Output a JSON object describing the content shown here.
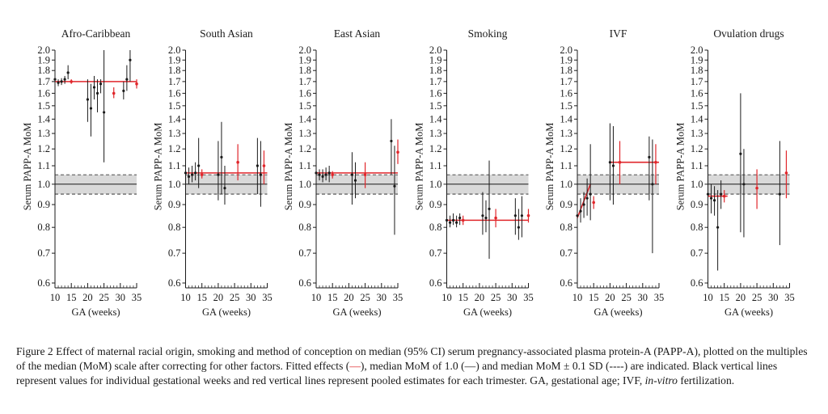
{
  "chart_data": [
    {
      "type": "scatter",
      "title": "Afro-Caribbean",
      "xlabel": "GA (weeks)",
      "ylabel": "Serum PAPP-A MoM",
      "xlim": [
        10,
        35
      ],
      "ylim": [
        0.6,
        2.0
      ],
      "y_scale": "log",
      "xticks": [
        10,
        15,
        20,
        25,
        30,
        35
      ],
      "yticks": [
        0.6,
        0.7,
        0.8,
        0.9,
        1.0,
        1.1,
        1.2,
        1.3,
        1.4,
        1.5,
        1.6,
        1.7,
        1.8,
        1.9,
        2.0
      ],
      "reference": {
        "median": 1.0,
        "band": [
          0.95,
          1.05
        ]
      },
      "fitted": [
        {
          "x0": 10,
          "x1": 35,
          "y": 1.7
        }
      ],
      "weekly_estimates": [
        {
          "x": 10,
          "y": 1.72,
          "lo": 1.69,
          "hi": 1.75
        },
        {
          "x": 11,
          "y": 1.69,
          "lo": 1.66,
          "hi": 1.72
        },
        {
          "x": 12,
          "y": 1.7,
          "lo": 1.67,
          "hi": 1.73
        },
        {
          "x": 13,
          "y": 1.72,
          "lo": 1.68,
          "hi": 1.75
        },
        {
          "x": 14,
          "y": 1.78,
          "lo": 1.72,
          "hi": 1.85
        },
        {
          "x": 20,
          "y": 1.55,
          "lo": 1.38,
          "hi": 1.72
        },
        {
          "x": 21,
          "y": 1.48,
          "lo": 1.28,
          "hi": 1.68
        },
        {
          "x": 22,
          "y": 1.65,
          "lo": 1.55,
          "hi": 1.75
        },
        {
          "x": 23,
          "y": 1.6,
          "lo": 1.45,
          "hi": 1.72
        },
        {
          "x": 24,
          "y": 1.68,
          "lo": 1.6,
          "hi": 1.72
        },
        {
          "x": 25,
          "y": 1.45,
          "lo": 1.12,
          "hi": 2.0
        },
        {
          "x": 31,
          "y": 1.62,
          "lo": 1.55,
          "hi": 1.7
        },
        {
          "x": 32,
          "y": 1.72,
          "lo": 1.62,
          "hi": 1.85
        },
        {
          "x": 33,
          "y": 1.9,
          "lo": 1.7,
          "hi": 2.0
        }
      ],
      "trimester_estimates": [
        {
          "x": 15,
          "y": 1.7,
          "lo": 1.68,
          "hi": 1.72
        },
        {
          "x": 28,
          "y": 1.6,
          "lo": 1.56,
          "hi": 1.65
        },
        {
          "x": 35,
          "y": 1.68,
          "lo": 1.64,
          "hi": 1.72
        }
      ]
    },
    {
      "type": "scatter",
      "title": "South Asian",
      "xlabel": "GA (weeks)",
      "ylabel": "Serum PAPP-A MoM",
      "xlim": [
        10,
        35
      ],
      "ylim": [
        0.6,
        2.0
      ],
      "y_scale": "log",
      "xticks": [
        10,
        15,
        20,
        25,
        30,
        35
      ],
      "yticks": [
        0.6,
        0.7,
        0.8,
        0.9,
        1.0,
        1.1,
        1.2,
        1.3,
        1.4,
        1.5,
        1.6,
        1.7,
        1.8,
        1.9,
        2.0
      ],
      "reference": {
        "median": 1.0,
        "band": [
          0.95,
          1.05
        ]
      },
      "fitted": [
        {
          "x0": 10,
          "x1": 35,
          "y": 1.06
        }
      ],
      "weekly_estimates": [
        {
          "x": 10,
          "y": 1.06,
          "lo": 1.02,
          "hi": 1.11
        },
        {
          "x": 11,
          "y": 1.04,
          "lo": 1.0,
          "hi": 1.09
        },
        {
          "x": 12,
          "y": 1.05,
          "lo": 1.01,
          "hi": 1.1
        },
        {
          "x": 13,
          "y": 1.06,
          "lo": 1.02,
          "hi": 1.12
        },
        {
          "x": 14,
          "y": 1.1,
          "lo": 0.98,
          "hi": 1.27
        },
        {
          "x": 20,
          "y": 1.05,
          "lo": 0.92,
          "hi": 1.25
        },
        {
          "x": 21,
          "y": 1.15,
          "lo": 0.95,
          "hi": 1.38
        },
        {
          "x": 22,
          "y": 0.98,
          "lo": 0.9,
          "hi": 1.1
        },
        {
          "x": 32,
          "y": 1.1,
          "lo": 0.95,
          "hi": 1.27
        },
        {
          "x": 33,
          "y": 1.05,
          "lo": 0.89,
          "hi": 1.25
        }
      ],
      "trimester_estimates": [
        {
          "x": 15,
          "y": 1.05,
          "lo": 1.03,
          "hi": 1.08
        },
        {
          "x": 26,
          "y": 1.12,
          "lo": 1.02,
          "hi": 1.23
        },
        {
          "x": 34,
          "y": 1.1,
          "lo": 1.0,
          "hi": 1.19
        }
      ]
    },
    {
      "type": "scatter",
      "title": "East Asian",
      "xlabel": "GA (weeks)",
      "ylabel": "Serum PAPP-A MoM",
      "xlim": [
        10,
        35
      ],
      "ylim": [
        0.6,
        2.0
      ],
      "y_scale": "log",
      "xticks": [
        10,
        15,
        20,
        25,
        30,
        35
      ],
      "yticks": [
        0.6,
        0.7,
        0.8,
        0.9,
        1.0,
        1.1,
        1.2,
        1.3,
        1.4,
        1.5,
        1.6,
        1.7,
        1.8,
        1.9,
        2.0
      ],
      "reference": {
        "median": 1.0,
        "band": [
          0.95,
          1.05
        ]
      },
      "fitted": [
        {
          "x0": 10,
          "x1": 35,
          "y": 1.06
        }
      ],
      "weekly_estimates": [
        {
          "x": 10,
          "y": 1.06,
          "lo": 1.03,
          "hi": 1.09
        },
        {
          "x": 11,
          "y": 1.05,
          "lo": 1.02,
          "hi": 1.08
        },
        {
          "x": 12,
          "y": 1.04,
          "lo": 1.01,
          "hi": 1.08
        },
        {
          "x": 13,
          "y": 1.05,
          "lo": 1.02,
          "hi": 1.09
        },
        {
          "x": 14,
          "y": 1.06,
          "lo": 1.01,
          "hi": 1.1
        },
        {
          "x": 21,
          "y": 1.05,
          "lo": 0.9,
          "hi": 1.18
        },
        {
          "x": 22,
          "y": 1.02,
          "lo": 0.93,
          "hi": 1.12
        },
        {
          "x": 33,
          "y": 1.25,
          "lo": 1.05,
          "hi": 1.4
        },
        {
          "x": 34,
          "y": 0.99,
          "lo": 0.77,
          "hi": 1.22
        }
      ],
      "trimester_estimates": [
        {
          "x": 15,
          "y": 1.05,
          "lo": 1.03,
          "hi": 1.07
        },
        {
          "x": 25,
          "y": 1.05,
          "lo": 0.98,
          "hi": 1.12
        },
        {
          "x": 35,
          "y": 1.18,
          "lo": 1.11,
          "hi": 1.26
        }
      ]
    },
    {
      "type": "scatter",
      "title": "Smoking",
      "xlabel": "GA (weeks)",
      "ylabel": "Serum PAPP-A MoM",
      "xlim": [
        10,
        35
      ],
      "ylim": [
        0.6,
        2.0
      ],
      "y_scale": "log",
      "xticks": [
        10,
        15,
        20,
        25,
        30,
        35
      ],
      "yticks": [
        0.6,
        0.7,
        0.8,
        0.9,
        1.0,
        1.1,
        1.2,
        1.3,
        1.4,
        1.5,
        1.6,
        1.7,
        1.8,
        1.9,
        2.0
      ],
      "reference": {
        "median": 1.0,
        "band": [
          0.95,
          1.05
        ]
      },
      "fitted": [
        {
          "x0": 10,
          "x1": 35,
          "y": 0.83
        }
      ],
      "weekly_estimates": [
        {
          "x": 10,
          "y": 0.83,
          "lo": 0.8,
          "hi": 0.86
        },
        {
          "x": 11,
          "y": 0.82,
          "lo": 0.8,
          "hi": 0.85
        },
        {
          "x": 12,
          "y": 0.83,
          "lo": 0.81,
          "hi": 0.86
        },
        {
          "x": 13,
          "y": 0.82,
          "lo": 0.8,
          "hi": 0.85
        },
        {
          "x": 14,
          "y": 0.84,
          "lo": 0.81,
          "hi": 0.86
        },
        {
          "x": 21,
          "y": 0.85,
          "lo": 0.77,
          "hi": 0.96
        },
        {
          "x": 22,
          "y": 0.84,
          "lo": 0.78,
          "hi": 0.92
        },
        {
          "x": 23,
          "y": 0.88,
          "lo": 0.68,
          "hi": 1.13
        },
        {
          "x": 31,
          "y": 0.85,
          "lo": 0.77,
          "hi": 0.93
        },
        {
          "x": 32,
          "y": 0.8,
          "lo": 0.75,
          "hi": 0.88
        },
        {
          "x": 33,
          "y": 0.85,
          "lo": 0.76,
          "hi": 0.94
        }
      ],
      "trimester_estimates": [
        {
          "x": 15,
          "y": 0.83,
          "lo": 0.81,
          "hi": 0.85
        },
        {
          "x": 25,
          "y": 0.84,
          "lo": 0.8,
          "hi": 0.88
        },
        {
          "x": 35,
          "y": 0.85,
          "lo": 0.82,
          "hi": 0.88
        }
      ]
    },
    {
      "type": "scatter",
      "title": "IVF",
      "xlabel": "GA (weeks)",
      "ylabel": "Serum PAPP-A MoM",
      "xlim": [
        10,
        35
      ],
      "ylim": [
        0.6,
        2.0
      ],
      "y_scale": "log",
      "xticks": [
        10,
        15,
        20,
        25,
        30,
        35
      ],
      "yticks": [
        0.6,
        0.7,
        0.8,
        0.9,
        1.0,
        1.1,
        1.2,
        1.3,
        1.4,
        1.5,
        1.6,
        1.7,
        1.8,
        1.9,
        2.0
      ],
      "reference": {
        "median": 1.0,
        "band": [
          0.95,
          1.05
        ]
      },
      "fitted": [
        {
          "x0": 10,
          "x1": 14,
          "y0": 0.84,
          "y1": 1.0
        },
        {
          "x0": 20,
          "x1": 35,
          "y": 1.12
        }
      ],
      "weekly_estimates": [
        {
          "x": 10,
          "y": 0.85,
          "lo": 0.79,
          "hi": 0.92
        },
        {
          "x": 11,
          "y": 0.87,
          "lo": 0.82,
          "hi": 0.93
        },
        {
          "x": 12,
          "y": 0.9,
          "lo": 0.84,
          "hi": 0.96
        },
        {
          "x": 13,
          "y": 0.93,
          "lo": 0.85,
          "hi": 1.03
        },
        {
          "x": 14,
          "y": 0.95,
          "lo": 0.83,
          "hi": 1.23
        },
        {
          "x": 20,
          "y": 1.12,
          "lo": 0.92,
          "hi": 1.37
        },
        {
          "x": 21,
          "y": 1.1,
          "lo": 0.9,
          "hi": 1.35
        },
        {
          "x": 32,
          "y": 1.15,
          "lo": 0.92,
          "hi": 1.28
        },
        {
          "x": 33,
          "y": 1.0,
          "lo": 0.7,
          "hi": 1.26
        }
      ],
      "trimester_estimates": [
        {
          "x": 15,
          "y": 0.91,
          "lo": 0.88,
          "hi": 0.94
        },
        {
          "x": 23,
          "y": 1.12,
          "lo": 1.0,
          "hi": 1.25
        },
        {
          "x": 34,
          "y": 1.12,
          "lo": 1.0,
          "hi": 1.23
        }
      ]
    },
    {
      "type": "scatter",
      "title": "Ovulation drugs",
      "xlabel": "GA (weeks)",
      "ylabel": "Serum PAPP-A MoM",
      "xlim": [
        10,
        35
      ],
      "ylim": [
        0.6,
        2.0
      ],
      "y_scale": "log",
      "xticks": [
        10,
        15,
        20,
        25,
        30,
        35
      ],
      "yticks": [
        0.6,
        0.7,
        0.8,
        0.9,
        1.0,
        1.1,
        1.2,
        1.3,
        1.4,
        1.5,
        1.6,
        1.7,
        1.8,
        1.9,
        2.0
      ],
      "reference": {
        "median": 1.0,
        "band": [
          0.95,
          1.05
        ]
      },
      "fitted": [
        {
          "x0": 10,
          "x1": 16,
          "y": 0.94
        }
      ],
      "weekly_estimates": [
        {
          "x": 10,
          "y": 0.95,
          "lo": 0.9,
          "hi": 1.02
        },
        {
          "x": 11,
          "y": 0.93,
          "lo": 0.86,
          "hi": 1.0
        },
        {
          "x": 12,
          "y": 0.92,
          "lo": 0.85,
          "hi": 0.99
        },
        {
          "x": 13,
          "y": 0.8,
          "lo": 0.64,
          "hi": 0.97
        },
        {
          "x": 14,
          "y": 0.95,
          "lo": 0.88,
          "hi": 1.02
        },
        {
          "x": 20,
          "y": 1.17,
          "lo": 0.78,
          "hi": 1.6
        },
        {
          "x": 21,
          "y": 1.0,
          "lo": 0.76,
          "hi": 1.2
        },
        {
          "x": 32,
          "y": 0.95,
          "lo": 0.73,
          "hi": 1.25
        }
      ],
      "trimester_estimates": [
        {
          "x": 15,
          "y": 0.94,
          "lo": 0.91,
          "hi": 0.97
        },
        {
          "x": 25,
          "y": 0.98,
          "lo": 0.88,
          "hi": 1.08
        },
        {
          "x": 34,
          "y": 1.06,
          "lo": 0.93,
          "hi": 1.19
        }
      ]
    }
  ],
  "caption": {
    "label": "Figure 2",
    "text_part1": " Effect of maternal racial origin, smoking and method of conception on median (95% CI) serum pregnancy-associated plasma protein-A (PAPP-A), plotted on the multiples of the median (MoM) scale after correcting for other factors. Fitted effects (",
    "fitted_symbol": "—",
    "text_part2": "), median MoM of 1.0 (",
    "median_symbol": "—",
    "text_part3": ") and median MoM ± 0.1 SD (",
    "sd_symbol": "----",
    "text_part4": ") are indicated. Black vertical lines represent values for individual gestational weeks and red vertical lines represent pooled estimates for each trimester. GA, gestational age; IVF, ",
    "ivf_term": "in-vitro",
    "text_part5": " fertilization."
  },
  "colors": {
    "fitted": "#e0262b",
    "trimester": "#e0262b",
    "weekly": "#1a1a1a",
    "band": "#d9d9d9",
    "axis": "#1a1a1a"
  }
}
